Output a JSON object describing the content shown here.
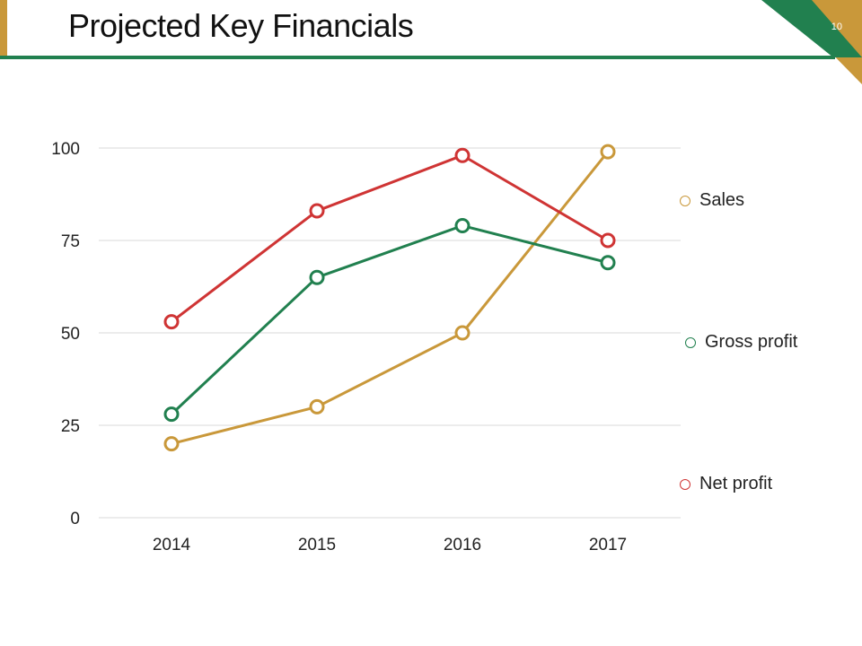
{
  "header": {
    "title": "Projected Key Financials",
    "page_number": "10"
  },
  "colors": {
    "gold": "#c9983a",
    "green": "#21804f",
    "red": "#cf3434",
    "grid": "#d9d9d9"
  },
  "chart_data": {
    "type": "line",
    "categories": [
      "2014",
      "2015",
      "2016",
      "2017"
    ],
    "series": [
      {
        "name": "Sales",
        "values": [
          20,
          30,
          50,
          99
        ],
        "color": "#c9983a"
      },
      {
        "name": "Gross profit",
        "values": [
          28,
          65,
          79,
          69
        ],
        "color": "#21804f"
      },
      {
        "name": "Net profit",
        "values": [
          53,
          83,
          98,
          75
        ],
        "color": "#cf3434"
      }
    ],
    "yticks": [
      "0",
      "25",
      "50",
      "75",
      "100"
    ],
    "ylim": [
      0,
      100
    ],
    "grid": true,
    "legend_position": "right",
    "xlabel": "",
    "ylabel": ""
  }
}
